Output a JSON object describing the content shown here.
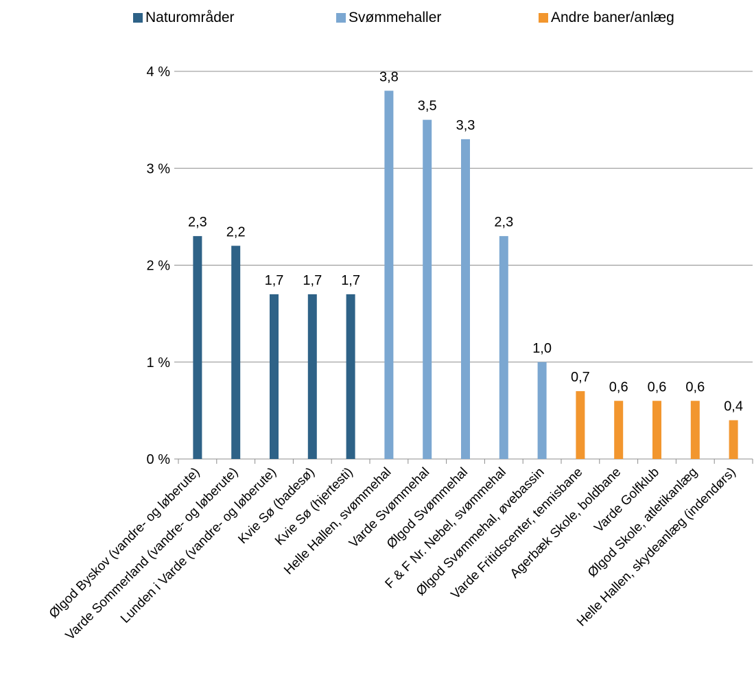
{
  "chart_data": {
    "type": "bar",
    "title": "",
    "xlabel": "",
    "ylabel": "",
    "ylim": [
      0,
      4
    ],
    "y_ticks": [
      "0 %",
      "1 %",
      "2 %",
      "3 %",
      "4 %"
    ],
    "y_tick_values": [
      0,
      1,
      2,
      3,
      4
    ],
    "grid": true,
    "legend_position": "top",
    "categories": [
      "Ølgod Byskov (vandre- og løberute)",
      "Varde Sommerland (vandre- og løberute)",
      "Lunden i Varde (vandre- og løberute)",
      "Kvie Sø (badesø)",
      "Kvie Sø (hjertesti)",
      "Helle Hallen, svømmehal",
      "Varde Svømmehal",
      "Ølgod Svømmehal",
      "F & F Nr. Nebel, svømmehal",
      "Ølgod Svømmehal, øvebassin",
      "Varde Fritidscenter, tennisbane",
      "Agerbæk Skole, boldbane",
      "Varde Golfklub",
      "Ølgod Skole, atletikanlæg",
      "Helle Hallen, skydeanlæg (indendørs)"
    ],
    "series": [
      {
        "name": "Naturområder",
        "color": "#2E6287",
        "values": [
          2.3,
          2.2,
          1.7,
          1.7,
          1.7,
          null,
          null,
          null,
          null,
          null,
          null,
          null,
          null,
          null,
          null
        ],
        "labels": [
          "2,3",
          "2,2",
          "1,7",
          "1,7",
          "1,7",
          "",
          "",
          "",
          "",
          "",
          "",
          "",
          "",
          "",
          ""
        ]
      },
      {
        "name": "Svømmehaller",
        "color": "#7BA7D1",
        "values": [
          null,
          null,
          null,
          null,
          null,
          3.8,
          3.5,
          3.3,
          2.3,
          1.0,
          null,
          null,
          null,
          null,
          null
        ],
        "labels": [
          "",
          "",
          "",
          "",
          "",
          "3,8",
          "3,5",
          "3,3",
          "2,3",
          "1,0",
          "",
          "",
          "",
          "",
          ""
        ]
      },
      {
        "name": "Andre baner/anlæg",
        "color": "#F2962E",
        "values": [
          null,
          null,
          null,
          null,
          null,
          null,
          null,
          null,
          null,
          null,
          0.7,
          0.6,
          0.6,
          0.6,
          0.4
        ],
        "labels": [
          "",
          "",
          "",
          "",
          "",
          "",
          "",
          "",
          "",
          "",
          "0,7",
          "0,6",
          "0,6",
          "0,6",
          "0,4"
        ]
      }
    ]
  }
}
